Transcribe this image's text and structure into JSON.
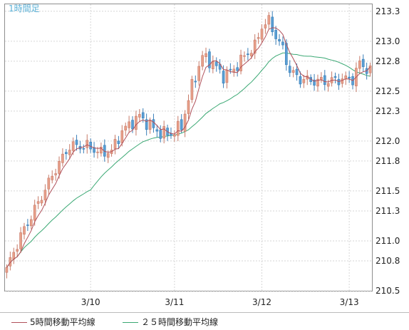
{
  "timeframe_label": "1時間足",
  "chart_data": {
    "type": "candlestick",
    "title": "",
    "xlabel": "",
    "ylabel": "",
    "ylim": [
      210.5,
      213.37
    ],
    "y_ticks": [
      "210.5",
      "210.8",
      "211.0",
      "211.3",
      "211.5",
      "211.8",
      "212.0",
      "212.3",
      "212.5",
      "212.8",
      "213.0",
      "213.3"
    ],
    "x_ticks": [
      {
        "label": "3/10",
        "index": 24
      },
      {
        "label": "3/11",
        "index": 48
      },
      {
        "label": "3/12",
        "index": 73
      },
      {
        "label": "3/13",
        "index": 98
      }
    ],
    "grid": true,
    "legend_position": "bottom",
    "up_color": "#e8a08a",
    "down_color": "#5a9fd4",
    "candle_count": 105,
    "waypoints": [
      [
        0,
        210.72
      ],
      [
        4,
        211.05
      ],
      [
        9,
        211.38
      ],
      [
        14,
        211.72
      ],
      [
        18,
        211.95
      ],
      [
        23,
        211.95
      ],
      [
        27,
        211.88
      ],
      [
        30,
        211.9
      ],
      [
        33,
        212.1
      ],
      [
        38,
        212.25
      ],
      [
        41,
        212.15
      ],
      [
        44,
        212.08
      ],
      [
        47,
        212.07
      ],
      [
        50,
        212.15
      ],
      [
        53,
        212.55
      ],
      [
        56,
        212.85
      ],
      [
        59,
        212.78
      ],
      [
        62,
        212.65
      ],
      [
        65,
        212.72
      ],
      [
        68,
        212.85
      ],
      [
        71,
        212.95
      ],
      [
        73,
        213.15
      ],
      [
        75,
        213.2
      ],
      [
        77,
        213.05
      ],
      [
        79,
        212.92
      ],
      [
        81,
        212.7
      ],
      [
        84,
        212.62
      ],
      [
        88,
        212.6
      ],
      [
        92,
        212.6
      ],
      [
        96,
        212.62
      ],
      [
        99,
        212.62
      ],
      [
        101,
        212.78
      ],
      [
        104,
        212.7
      ]
    ],
    "series": [
      {
        "name": "5時間移動平均線",
        "color": "#b0505a",
        "period": 5
      },
      {
        "name": "25時間移動平均線",
        "color": "#3aa873",
        "period": 25
      }
    ]
  },
  "legend": {
    "ma5_label": "5時間移動平均線",
    "ma25_label": "２５時間移動平均線"
  }
}
